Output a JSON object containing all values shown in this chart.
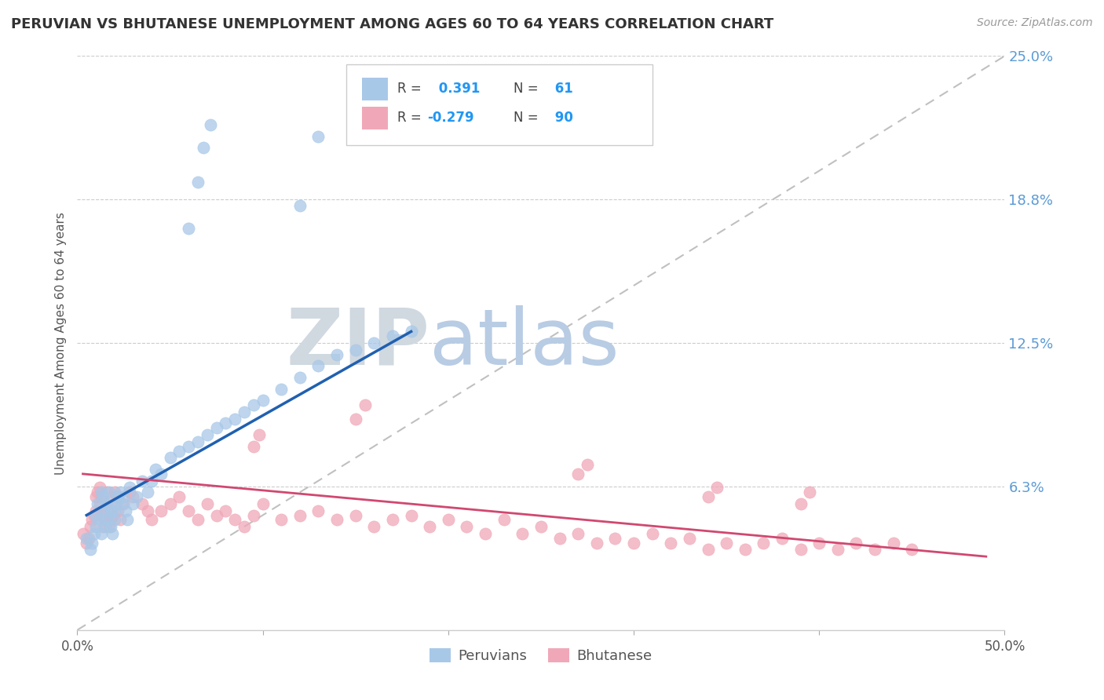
{
  "title": "PERUVIAN VS BHUTANESE UNEMPLOYMENT AMONG AGES 60 TO 64 YEARS CORRELATION CHART",
  "source": "Source: ZipAtlas.com",
  "ylabel": "Unemployment Among Ages 60 to 64 years",
  "xlim": [
    0,
    0.5
  ],
  "ylim": [
    0,
    0.25
  ],
  "ytick_values": [
    0.0625,
    0.125,
    0.1875,
    0.25
  ],
  "ytick_labels": [
    "6.3%",
    "12.5%",
    "18.8%",
    "25.0%"
  ],
  "blue_R": 0.391,
  "blue_N": 61,
  "pink_R": -0.279,
  "pink_N": 90,
  "blue_color": "#a8c8e8",
  "pink_color": "#f0a8b8",
  "blue_line_color": "#2060b0",
  "pink_line_color": "#d04870",
  "diagonal_color": "#c0c0c0",
  "watermark_ZIP_color": "#d0d8e0",
  "watermark_atlas_color": "#b8cce4",
  "background_color": "#ffffff",
  "legend_label_blue": "Peruvians",
  "legend_label_pink": "Bhutanese",
  "blue_x": [
    0.005,
    0.007,
    0.008,
    0.009,
    0.01,
    0.01,
    0.011,
    0.012,
    0.013,
    0.013,
    0.014,
    0.015,
    0.015,
    0.016,
    0.016,
    0.017,
    0.018,
    0.018,
    0.019,
    0.02,
    0.02,
    0.021,
    0.022,
    0.023,
    0.024,
    0.025,
    0.026,
    0.027,
    0.028,
    0.03,
    0.032,
    0.035,
    0.038,
    0.04,
    0.042,
    0.045,
    0.05,
    0.055,
    0.06,
    0.065,
    0.07,
    0.075,
    0.08,
    0.085,
    0.09,
    0.095,
    0.1,
    0.11,
    0.12,
    0.13,
    0.14,
    0.15,
    0.16,
    0.17,
    0.18,
    0.06,
    0.065,
    0.12,
    0.13,
    0.068,
    0.072
  ],
  "blue_y": [
    0.04,
    0.035,
    0.038,
    0.042,
    0.045,
    0.05,
    0.055,
    0.048,
    0.042,
    0.06,
    0.058,
    0.052,
    0.045,
    0.048,
    0.055,
    0.06,
    0.052,
    0.045,
    0.042,
    0.048,
    0.052,
    0.055,
    0.058,
    0.06,
    0.055,
    0.058,
    0.052,
    0.048,
    0.062,
    0.055,
    0.058,
    0.065,
    0.06,
    0.065,
    0.07,
    0.068,
    0.075,
    0.078,
    0.08,
    0.082,
    0.085,
    0.088,
    0.09,
    0.092,
    0.095,
    0.098,
    0.1,
    0.105,
    0.11,
    0.115,
    0.12,
    0.122,
    0.125,
    0.128,
    0.13,
    0.175,
    0.195,
    0.185,
    0.215,
    0.21,
    0.22
  ],
  "pink_x": [
    0.003,
    0.005,
    0.006,
    0.007,
    0.008,
    0.009,
    0.01,
    0.01,
    0.011,
    0.012,
    0.012,
    0.013,
    0.013,
    0.014,
    0.015,
    0.015,
    0.016,
    0.016,
    0.017,
    0.018,
    0.018,
    0.019,
    0.02,
    0.02,
    0.021,
    0.022,
    0.023,
    0.025,
    0.028,
    0.03,
    0.035,
    0.038,
    0.04,
    0.045,
    0.05,
    0.055,
    0.06,
    0.065,
    0.07,
    0.075,
    0.08,
    0.085,
    0.09,
    0.095,
    0.1,
    0.11,
    0.12,
    0.13,
    0.14,
    0.15,
    0.16,
    0.17,
    0.18,
    0.19,
    0.2,
    0.21,
    0.22,
    0.23,
    0.24,
    0.25,
    0.26,
    0.27,
    0.28,
    0.29,
    0.3,
    0.31,
    0.32,
    0.33,
    0.34,
    0.35,
    0.36,
    0.37,
    0.38,
    0.39,
    0.4,
    0.41,
    0.42,
    0.43,
    0.44,
    0.45,
    0.095,
    0.098,
    0.15,
    0.155,
    0.27,
    0.275,
    0.34,
    0.345,
    0.39,
    0.395
  ],
  "pink_y": [
    0.042,
    0.038,
    0.04,
    0.045,
    0.048,
    0.05,
    0.052,
    0.058,
    0.06,
    0.055,
    0.062,
    0.058,
    0.05,
    0.045,
    0.048,
    0.052,
    0.055,
    0.06,
    0.045,
    0.048,
    0.052,
    0.05,
    0.055,
    0.06,
    0.058,
    0.052,
    0.048,
    0.055,
    0.06,
    0.058,
    0.055,
    0.052,
    0.048,
    0.052,
    0.055,
    0.058,
    0.052,
    0.048,
    0.055,
    0.05,
    0.052,
    0.048,
    0.045,
    0.05,
    0.055,
    0.048,
    0.05,
    0.052,
    0.048,
    0.05,
    0.045,
    0.048,
    0.05,
    0.045,
    0.048,
    0.045,
    0.042,
    0.048,
    0.042,
    0.045,
    0.04,
    0.042,
    0.038,
    0.04,
    0.038,
    0.042,
    0.038,
    0.04,
    0.035,
    0.038,
    0.035,
    0.038,
    0.04,
    0.035,
    0.038,
    0.035,
    0.038,
    0.035,
    0.038,
    0.035,
    0.08,
    0.085,
    0.092,
    0.098,
    0.068,
    0.072,
    0.058,
    0.062,
    0.055,
    0.06
  ],
  "blue_line_x": [
    0.005,
    0.18
  ],
  "blue_line_y": [
    0.05,
    0.13
  ],
  "pink_line_x": [
    0.003,
    0.49
  ],
  "pink_line_y": [
    0.068,
    0.032
  ]
}
